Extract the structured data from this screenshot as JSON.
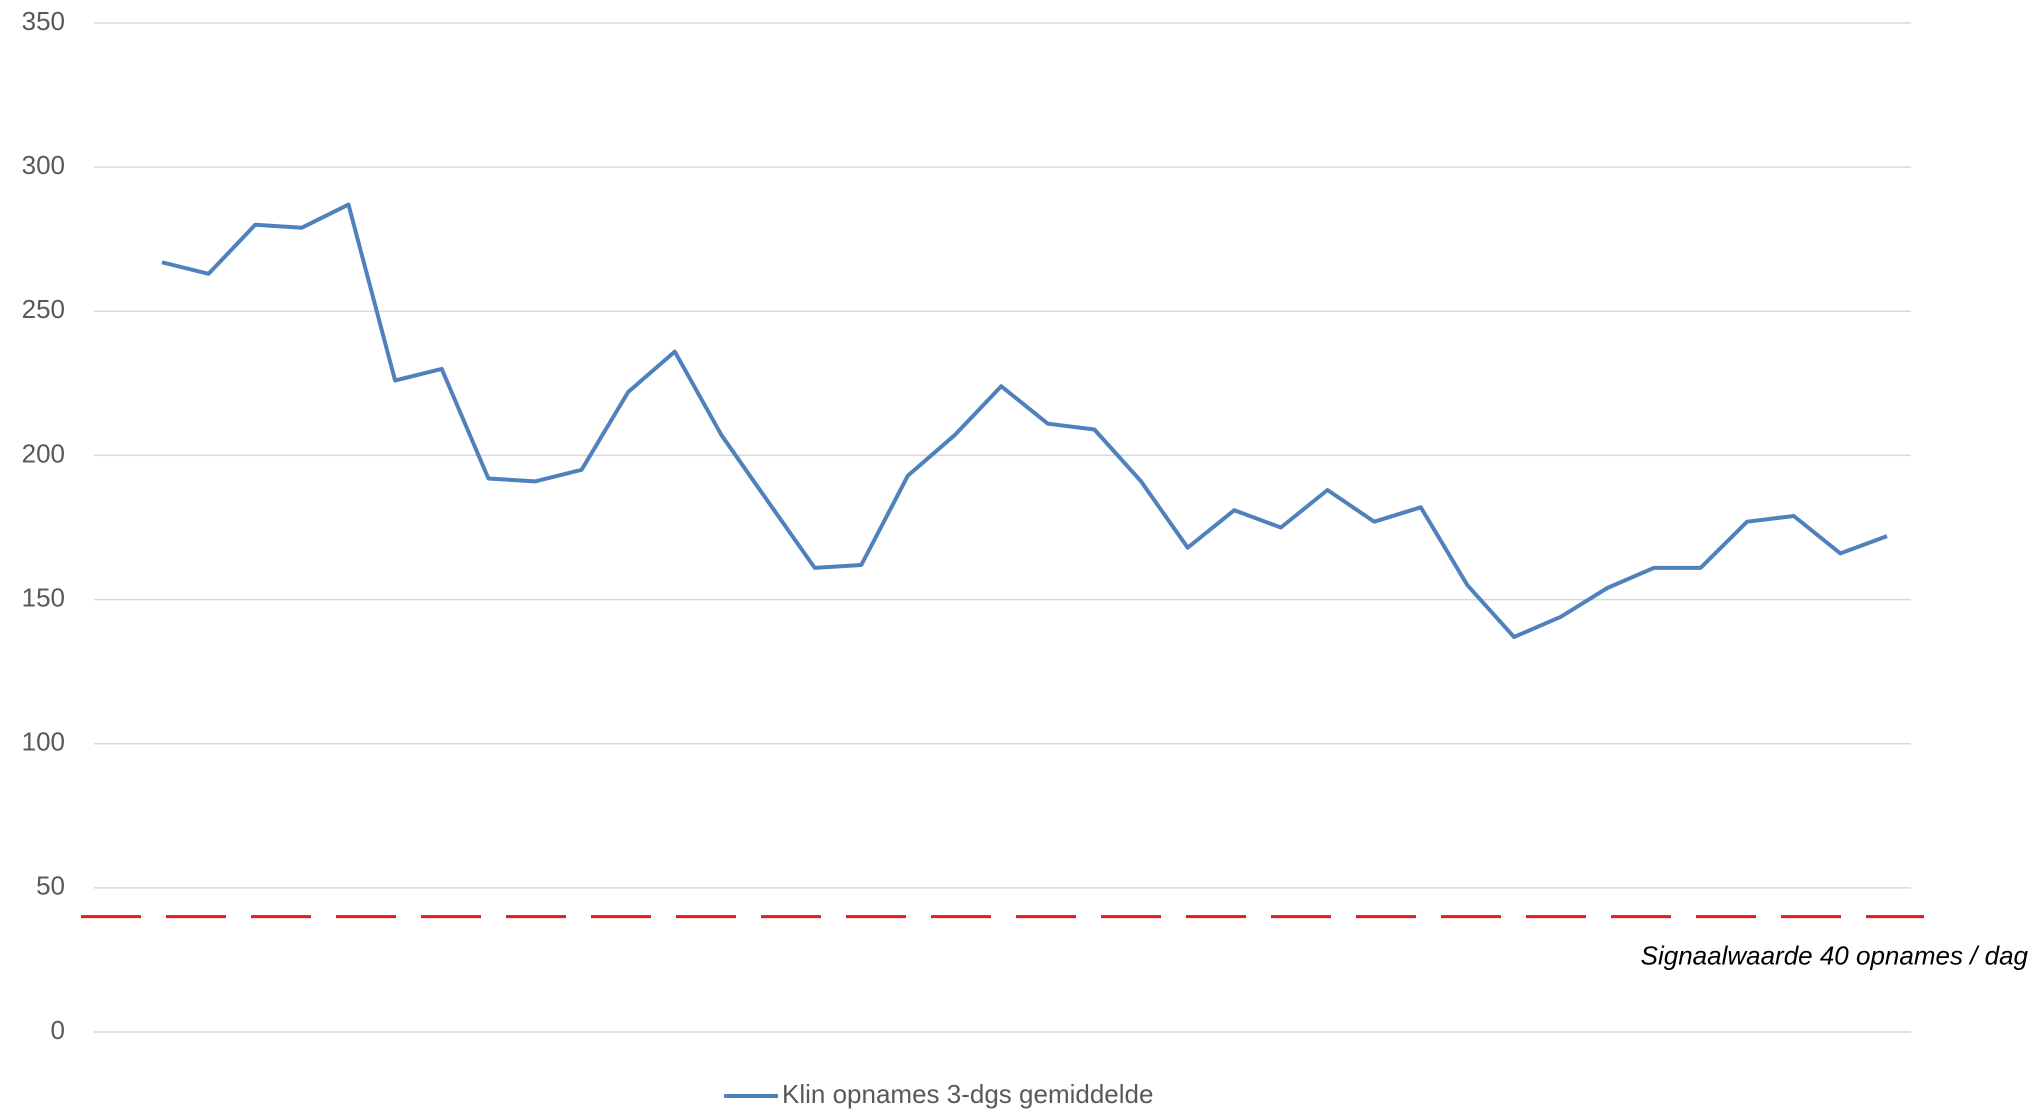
{
  "chart_data": {
    "type": "line",
    "series": [
      {
        "name": "Klin opnames 3-dgs gemiddelde",
        "color": "#4f81bd",
        "values": [
          267,
          263,
          280,
          279,
          287,
          226,
          230,
          192,
          191,
          195,
          222,
          236,
          207,
          184,
          161,
          162,
          193,
          207,
          224,
          211,
          209,
          191,
          168,
          181,
          175,
          188,
          177,
          182,
          155,
          137,
          144,
          154,
          161,
          161,
          177,
          179,
          166,
          172
        ]
      }
    ],
    "ylim": [
      0,
      350
    ],
    "yticks": [
      0,
      50,
      100,
      150,
      200,
      250,
      300,
      350
    ],
    "grid": true,
    "reference_line": {
      "value": 40,
      "color": "#e31a1c",
      "label": "Signaalwaarde 40 opnames / dag"
    },
    "legend": "bottom"
  }
}
